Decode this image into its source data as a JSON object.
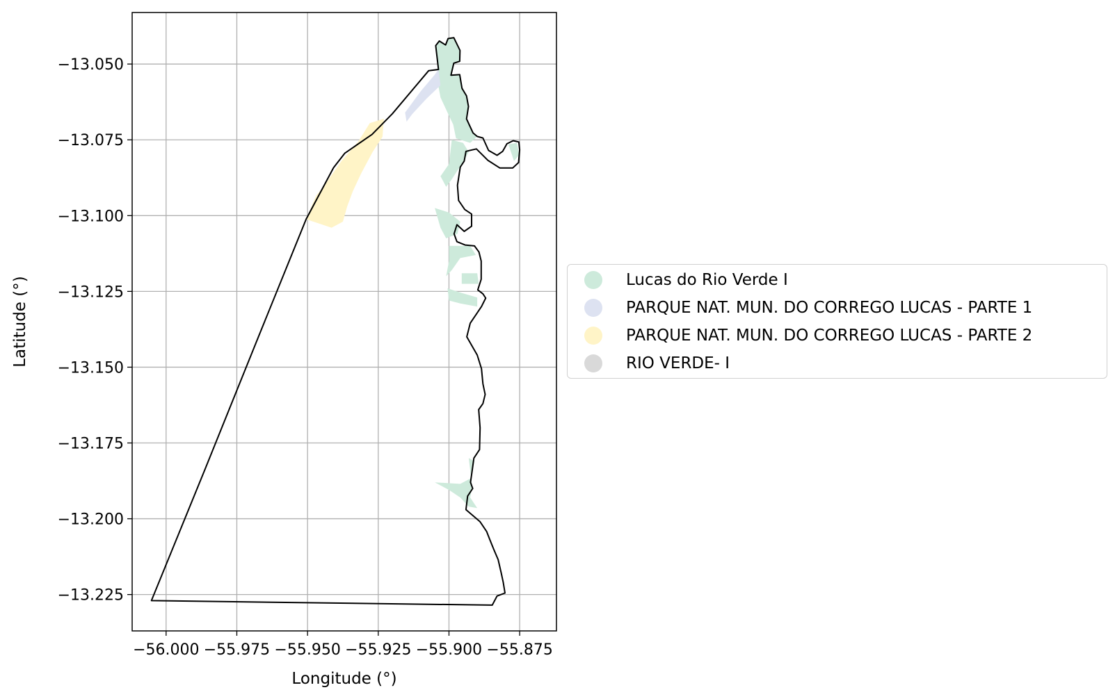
{
  "chart_data": {
    "type": "map",
    "xlabel": "Longitude (°)",
    "ylabel": "Latitude (°)",
    "xlim": [
      -56.012,
      -55.862
    ],
    "ylim": [
      -13.237,
      -13.033
    ],
    "grid": true,
    "legend_position": "right",
    "x_ticks": [
      {
        "value": -56.0,
        "label": "−56.000"
      },
      {
        "value": -55.975,
        "label": "−55.975"
      },
      {
        "value": -55.95,
        "label": "−55.950"
      },
      {
        "value": -55.925,
        "label": "−55.925"
      },
      {
        "value": -55.9,
        "label": "−55.900"
      },
      {
        "value": -55.875,
        "label": "−55.875"
      }
    ],
    "y_ticks": [
      {
        "value": -13.05,
        "label": "−13.050"
      },
      {
        "value": -13.075,
        "label": "−13.075"
      },
      {
        "value": -13.1,
        "label": "−13.100"
      },
      {
        "value": -13.125,
        "label": "−13.125"
      },
      {
        "value": -13.15,
        "label": "−13.150"
      },
      {
        "value": -13.175,
        "label": "−13.175"
      },
      {
        "value": -13.2,
        "label": "−13.200"
      },
      {
        "value": -13.225,
        "label": "−13.225"
      }
    ],
    "legend": [
      {
        "label": "Lucas do Rio Verde I",
        "color": "#cdeadb"
      },
      {
        "label": "PARQUE NAT. MUN. DO CORREGO LUCAS - PARTE 1",
        "color": "#dde2f1"
      },
      {
        "label": "PARQUE NAT. MUN. DO CORREGO LUCAS - PARTE 2",
        "color": "#fff4c7"
      },
      {
        "label": "RIO VERDE- I",
        "color": "#d9d9d9"
      }
    ],
    "boundary": {
      "color": "#000000",
      "coords": [
        [
          -55.9037,
          -13.0518
        ],
        [
          -55.9047,
          -13.0439
        ],
        [
          -55.9034,
          -13.0424
        ],
        [
          -55.9012,
          -13.0437
        ],
        [
          -55.9003,
          -13.0416
        ],
        [
          -55.8983,
          -13.0413
        ],
        [
          -55.8961,
          -13.0455
        ],
        [
          -55.8962,
          -13.0491
        ],
        [
          -55.8983,
          -13.0497
        ],
        [
          -55.8993,
          -13.0537
        ],
        [
          -55.8962,
          -13.0535
        ],
        [
          -55.8954,
          -13.058
        ],
        [
          -55.8938,
          -13.0605
        ],
        [
          -55.8931,
          -13.064
        ],
        [
          -55.8938,
          -13.0681
        ],
        [
          -55.8915,
          -13.0727
        ],
        [
          -55.89,
          -13.0739
        ],
        [
          -55.888,
          -13.0744
        ],
        [
          -55.886,
          -13.0785
        ],
        [
          -55.8845,
          -13.0793
        ],
        [
          -55.883,
          -13.0801
        ],
        [
          -55.881,
          -13.0788
        ],
        [
          -55.8795,
          -13.0763
        ],
        [
          -55.8773,
          -13.0753
        ],
        [
          -55.8753,
          -13.0757
        ],
        [
          -55.875,
          -13.0783
        ],
        [
          -55.8754,
          -13.0825
        ],
        [
          -55.8775,
          -13.0843
        ],
        [
          -55.882,
          -13.0843
        ],
        [
          -55.8862,
          -13.0818
        ],
        [
          -55.8903,
          -13.078
        ],
        [
          -55.894,
          -13.0788
        ],
        [
          -55.8946,
          -13.082
        ],
        [
          -55.896,
          -13.084
        ],
        [
          -55.897,
          -13.09
        ],
        [
          -55.8966,
          -13.095
        ],
        [
          -55.8944,
          -13.098
        ],
        [
          -55.892,
          -13.0995
        ],
        [
          -55.892,
          -13.1035
        ],
        [
          -55.8946,
          -13.1052
        ],
        [
          -55.8972,
          -13.103
        ],
        [
          -55.8982,
          -13.106
        ],
        [
          -55.8972,
          -13.1086
        ],
        [
          -55.8943,
          -13.1097
        ],
        [
          -55.891,
          -13.11
        ],
        [
          -55.8894,
          -13.112
        ],
        [
          -55.8886,
          -13.115
        ],
        [
          -55.8886,
          -13.121
        ],
        [
          -55.8898,
          -13.1245
        ],
        [
          -55.888,
          -13.1258
        ],
        [
          -55.887,
          -13.1272
        ],
        [
          -55.8885,
          -13.13
        ],
        [
          -55.8925,
          -13.1355
        ],
        [
          -55.8937,
          -13.14
        ],
        [
          -55.89,
          -13.146
        ],
        [
          -55.8885,
          -13.1505
        ],
        [
          -55.888,
          -13.1555
        ],
        [
          -55.8872,
          -13.159
        ],
        [
          -55.888,
          -13.162
        ],
        [
          -55.8895,
          -13.164
        ],
        [
          -55.889,
          -13.17
        ],
        [
          -55.8892,
          -13.1772
        ],
        [
          -55.8912,
          -13.18
        ],
        [
          -55.892,
          -13.1855
        ],
        [
          -55.8924,
          -13.188
        ],
        [
          -55.8916,
          -13.19
        ],
        [
          -55.8934,
          -13.1925
        ],
        [
          -55.894,
          -13.197
        ],
        [
          -55.889,
          -13.201
        ],
        [
          -55.8867,
          -13.2042
        ],
        [
          -55.8855,
          -13.207
        ],
        [
          -55.8842,
          -13.21
        ],
        [
          -55.8826,
          -13.2135
        ],
        [
          -55.8815,
          -13.218
        ],
        [
          -55.8808,
          -13.221
        ],
        [
          -55.8802,
          -13.2245
        ],
        [
          -55.883,
          -13.2255
        ],
        [
          -55.8847,
          -13.2285
        ],
        [
          -55.8847,
          -13.2285
        ],
        [
          -56.0052,
          -13.227
        ],
        [
          -55.9862,
          -13.1836
        ],
        [
          -55.9672,
          -13.1396
        ],
        [
          -55.9505,
          -13.1012
        ],
        [
          -55.9408,
          -13.0842
        ],
        [
          -55.9368,
          -13.0794
        ],
        [
          -55.9272,
          -13.0732
        ],
        [
          -55.92,
          -13.0664
        ],
        [
          -55.9072,
          -13.0522
        ],
        [
          -55.9037,
          -13.0518
        ]
      ]
    },
    "regions": [
      {
        "name": "Lucas do Rio Verde I",
        "coords": [
          [
            -55.9037,
            -13.0518
          ],
          [
            -55.9047,
            -13.0439
          ],
          [
            -55.9034,
            -13.0424
          ],
          [
            -55.9012,
            -13.0437
          ],
          [
            -55.9003,
            -13.0416
          ],
          [
            -55.8983,
            -13.0413
          ],
          [
            -55.8961,
            -13.0455
          ],
          [
            -55.8962,
            -13.0491
          ],
          [
            -55.8983,
            -13.0497
          ],
          [
            -55.8993,
            -13.0537
          ],
          [
            -55.8962,
            -13.0535
          ],
          [
            -55.8954,
            -13.058
          ],
          [
            -55.8938,
            -13.0605
          ],
          [
            -55.8931,
            -13.064
          ],
          [
            -55.8938,
            -13.0681
          ],
          [
            -55.8915,
            -13.0727
          ],
          [
            -55.89,
            -13.0739
          ],
          [
            -55.8925,
            -13.076
          ],
          [
            -55.8975,
            -13.0745
          ],
          [
            -55.8985,
            -13.07
          ],
          [
            -55.9005,
            -13.066
          ],
          [
            -55.903,
            -13.061
          ],
          [
            -55.904,
            -13.056
          ]
        ]
      },
      {
        "name": "Lucas do Rio Verde I",
        "coords": [
          [
            -55.899,
            -13.075
          ],
          [
            -55.895,
            -13.076
          ],
          [
            -55.893,
            -13.079
          ],
          [
            -55.8955,
            -13.083
          ],
          [
            -55.899,
            -13.088
          ],
          [
            -55.901,
            -13.0905
          ],
          [
            -55.903,
            -13.087
          ],
          [
            -55.9,
            -13.083
          ]
        ]
      },
      {
        "name": "Lucas do Rio Verde I",
        "coords": [
          [
            -55.879,
            -13.0765
          ],
          [
            -55.876,
            -13.076
          ],
          [
            -55.8752,
            -13.08
          ],
          [
            -55.877,
            -13.082
          ]
        ]
      },
      {
        "name": "Lucas do Rio Verde I",
        "coords": [
          [
            -55.905,
            -13.0975
          ],
          [
            -55.9,
            -13.099
          ],
          [
            -55.896,
            -13.102
          ],
          [
            -55.897,
            -13.106
          ],
          [
            -55.901,
            -13.1075
          ],
          [
            -55.903,
            -13.104
          ]
        ]
      },
      {
        "name": "Lucas do Rio Verde I",
        "coords": [
          [
            -55.9,
            -13.11
          ],
          [
            -55.8925,
            -13.11
          ],
          [
            -55.8905,
            -13.113
          ],
          [
            -55.896,
            -13.114
          ],
          [
            -55.899,
            -13.118
          ],
          [
            -55.901,
            -13.12
          ],
          [
            -55.9,
            -13.115
          ]
        ]
      },
      {
        "name": "Lucas do Rio Verde I",
        "coords": [
          [
            -55.8955,
            -13.119
          ],
          [
            -55.89,
            -13.119
          ],
          [
            -55.8895,
            -13.1225
          ],
          [
            -55.8955,
            -13.1225
          ]
        ]
      },
      {
        "name": "Lucas do Rio Verde I",
        "coords": [
          [
            -55.9005,
            -13.124
          ],
          [
            -55.8955,
            -13.1255
          ],
          [
            -55.89,
            -13.127
          ],
          [
            -55.89,
            -13.13
          ],
          [
            -55.896,
            -13.129
          ],
          [
            -55.9,
            -13.128
          ]
        ]
      },
      {
        "name": "Lucas do Rio Verde I",
        "coords": [
          [
            -55.893,
            -13.18
          ],
          [
            -55.891,
            -13.181
          ],
          [
            -55.892,
            -13.1865
          ],
          [
            -55.896,
            -13.1885
          ],
          [
            -55.905,
            -13.188
          ],
          [
            -55.9,
            -13.1905
          ],
          [
            -55.896,
            -13.193
          ],
          [
            -55.893,
            -13.196
          ],
          [
            -55.89,
            -13.1965
          ],
          [
            -55.8925,
            -13.193
          ],
          [
            -55.8918,
            -13.1895
          ]
        ]
      },
      {
        "name": "PARQUE NAT. MUN. DO CORREGO LUCAS - PARTE 1",
        "coords": [
          [
            -55.9037,
            -13.0518
          ],
          [
            -55.903,
            -13.057
          ],
          [
            -55.908,
            -13.0615
          ],
          [
            -55.913,
            -13.0665
          ],
          [
            -55.915,
            -13.069
          ],
          [
            -55.9155,
            -13.066
          ],
          [
            -55.91,
            -13.059
          ],
          [
            -55.905,
            -13.0535
          ]
        ]
      },
      {
        "name": "PARQUE NAT. MUN. DO CORREGO LUCAS - PARTE 2",
        "coords": [
          [
            -55.923,
            -13.068
          ],
          [
            -55.928,
            -13.0695
          ],
          [
            -55.932,
            -13.0755
          ],
          [
            -55.938,
            -13.082
          ],
          [
            -55.941,
            -13.086
          ],
          [
            -55.944,
            -13.09
          ],
          [
            -55.947,
            -13.0935
          ],
          [
            -55.9495,
            -13.099
          ],
          [
            -55.9505,
            -13.1012
          ],
          [
            -55.9415,
            -13.104
          ],
          [
            -55.9375,
            -13.102
          ],
          [
            -55.936,
            -13.097
          ],
          [
            -55.934,
            -13.092
          ],
          [
            -55.931,
            -13.086
          ],
          [
            -55.927,
            -13.079
          ],
          [
            -55.9235,
            -13.074
          ]
        ]
      }
    ]
  }
}
